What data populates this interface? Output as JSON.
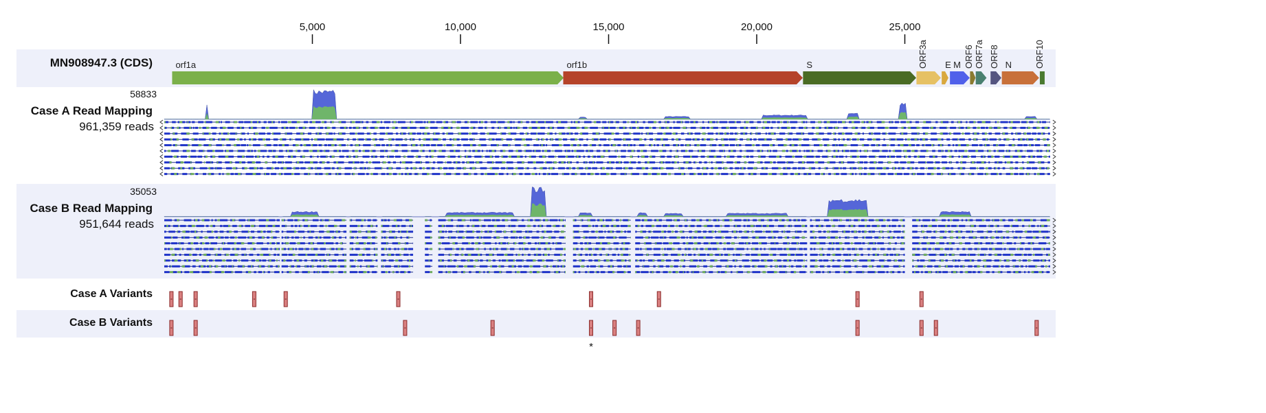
{
  "ruler": {
    "ticks": [
      5000,
      10000,
      15000,
      20000,
      25000
    ],
    "tick_labels": [
      "5,000",
      "10,000",
      "15,000",
      "20,000",
      "25,000"
    ],
    "genome_length": 29903
  },
  "reference": {
    "label": "MN908947.3 (CDS)",
    "genes": [
      {
        "name": "orf1a",
        "start": 266,
        "end": 13483,
        "color": "#7bb04a",
        "rotated": false
      },
      {
        "name": "orf1b",
        "start": 13468,
        "end": 21555,
        "color": "#b5432a",
        "rotated": false
      },
      {
        "name": "S",
        "start": 21563,
        "end": 25384,
        "color": "#4a6b24",
        "rotated": false
      },
      {
        "name": "ORF3a",
        "start": 25393,
        "end": 26220,
        "color": "#e6c164",
        "rotated": true
      },
      {
        "name": "E",
        "start": 26245,
        "end": 26472,
        "color": "#d9a83e",
        "rotated": false
      },
      {
        "name": "M",
        "start": 26523,
        "end": 27191,
        "color": "#5060ea",
        "rotated": false
      },
      {
        "name": "ORF6",
        "start": 27202,
        "end": 27387,
        "color": "#8a7a30",
        "rotated": true
      },
      {
        "name": "ORF7a",
        "start": 27394,
        "end": 27759,
        "color": "#4a8070",
        "rotated": true
      },
      {
        "name": "ORF8",
        "start": 27894,
        "end": 28259,
        "color": "#555580",
        "rotated": true
      },
      {
        "name": "N",
        "start": 28274,
        "end": 29533,
        "color": "#c8703a",
        "rotated": false
      },
      {
        "name": "ORF10",
        "start": 29558,
        "end": 29674,
        "color": "#4a7a30",
        "rotated": true
      }
    ]
  },
  "case_a_mapping": {
    "title": "Case A Read Mapping",
    "max_depth": "58833",
    "reads": "961,359 reads",
    "coverage_peaks": [
      [
        1400,
        1480,
        0.6
      ],
      [
        5000,
        5800,
        1.0
      ],
      [
        14000,
        14250,
        0.08
      ],
      [
        16900,
        17700,
        0.1
      ],
      [
        20200,
        21700,
        0.15
      ],
      [
        23100,
        23400,
        0.22
      ],
      [
        24800,
        25050,
        0.55
      ],
      [
        29100,
        29400,
        0.1
      ]
    ],
    "gaps": []
  },
  "case_b_mapping": {
    "title": "Case B Read Mapping",
    "max_depth": "35053",
    "reads": "951,644 reads",
    "coverage_peaks": [
      [
        4300,
        5200,
        0.18
      ],
      [
        9500,
        11800,
        0.15
      ],
      [
        12400,
        12850,
        1.0
      ],
      [
        14000,
        14400,
        0.14
      ],
      [
        16000,
        16300,
        0.14
      ],
      [
        16900,
        17500,
        0.12
      ],
      [
        19000,
        21000,
        0.12
      ],
      [
        22400,
        23700,
        0.6
      ],
      [
        26200,
        27200,
        0.18
      ]
    ],
    "gaps": [
      [
        3900,
        3960
      ],
      [
        6150,
        6260
      ],
      [
        7200,
        7320
      ],
      [
        8400,
        8800
      ],
      [
        9050,
        9250
      ],
      [
        13550,
        13800
      ],
      [
        15750,
        15900
      ],
      [
        21700,
        21800
      ],
      [
        25000,
        25250
      ]
    ]
  },
  "variants": {
    "case_a": {
      "label": "Case A Variants",
      "positions": [
        241,
        550,
        1059,
        3037,
        4100,
        7900,
        14408,
        16700,
        23403,
        25563
      ]
    },
    "case_b": {
      "label": "Case B Variants",
      "positions": [
        241,
        1059,
        8130,
        11083,
        14408,
        15200,
        16000,
        23403,
        25563,
        26050,
        29450
      ]
    },
    "shared_marker": "*",
    "marker_color": "#d98080"
  }
}
